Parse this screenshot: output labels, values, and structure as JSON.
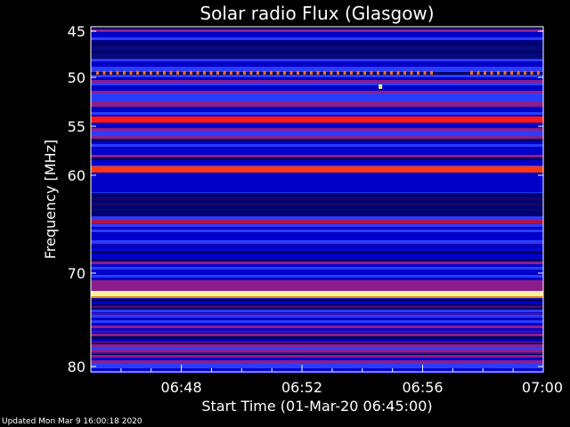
{
  "chart_data": {
    "type": "heatmap",
    "title": "Solar radio Flux (Glasgow)",
    "xlabel": "Start Time (01-Mar-20 06:45:00)",
    "ylabel": "Frequency [MHz]",
    "x_ticks": [
      "06:48",
      "06:52",
      "06:56",
      "07:00"
    ],
    "x_tick_minutes": [
      48,
      52,
      56,
      60
    ],
    "xlim_minutes": [
      45,
      60
    ],
    "y_ticks": [
      45,
      50,
      55,
      60,
      70,
      80
    ],
    "ylim": [
      45,
      80
    ],
    "colormap": [
      "#000060",
      "#0000c8",
      "#2a3cff",
      "#8c1e8c",
      "#d01010",
      "#ff3000",
      "#ffd000",
      "#ffffff"
    ],
    "features": [
      {
        "label": "strong interference band",
        "frequency_mhz": 72.2,
        "intensity": "max",
        "color": "#fff4a0"
      },
      {
        "label": "red band",
        "frequency_mhz": 54.3,
        "intensity": "high",
        "color": "#ff1818"
      },
      {
        "label": "red band",
        "frequency_mhz": 59.4,
        "intensity": "high",
        "color": "#ff3a10"
      },
      {
        "label": "dim red band",
        "frequency_mhz": 64.8,
        "intensity": "medium",
        "color": "#c01030"
      },
      {
        "label": "dotted periodic signal",
        "frequency_mhz": 49.5,
        "intensity": "high",
        "color": "#ff7020"
      },
      {
        "label": "isolated burst",
        "frequency_mhz": 50.9,
        "time_minutes": 54.6,
        "color": "#fff060"
      }
    ]
  },
  "footer": {
    "updated": "Updated Mon Mar  9 16:00:18 2020"
  }
}
